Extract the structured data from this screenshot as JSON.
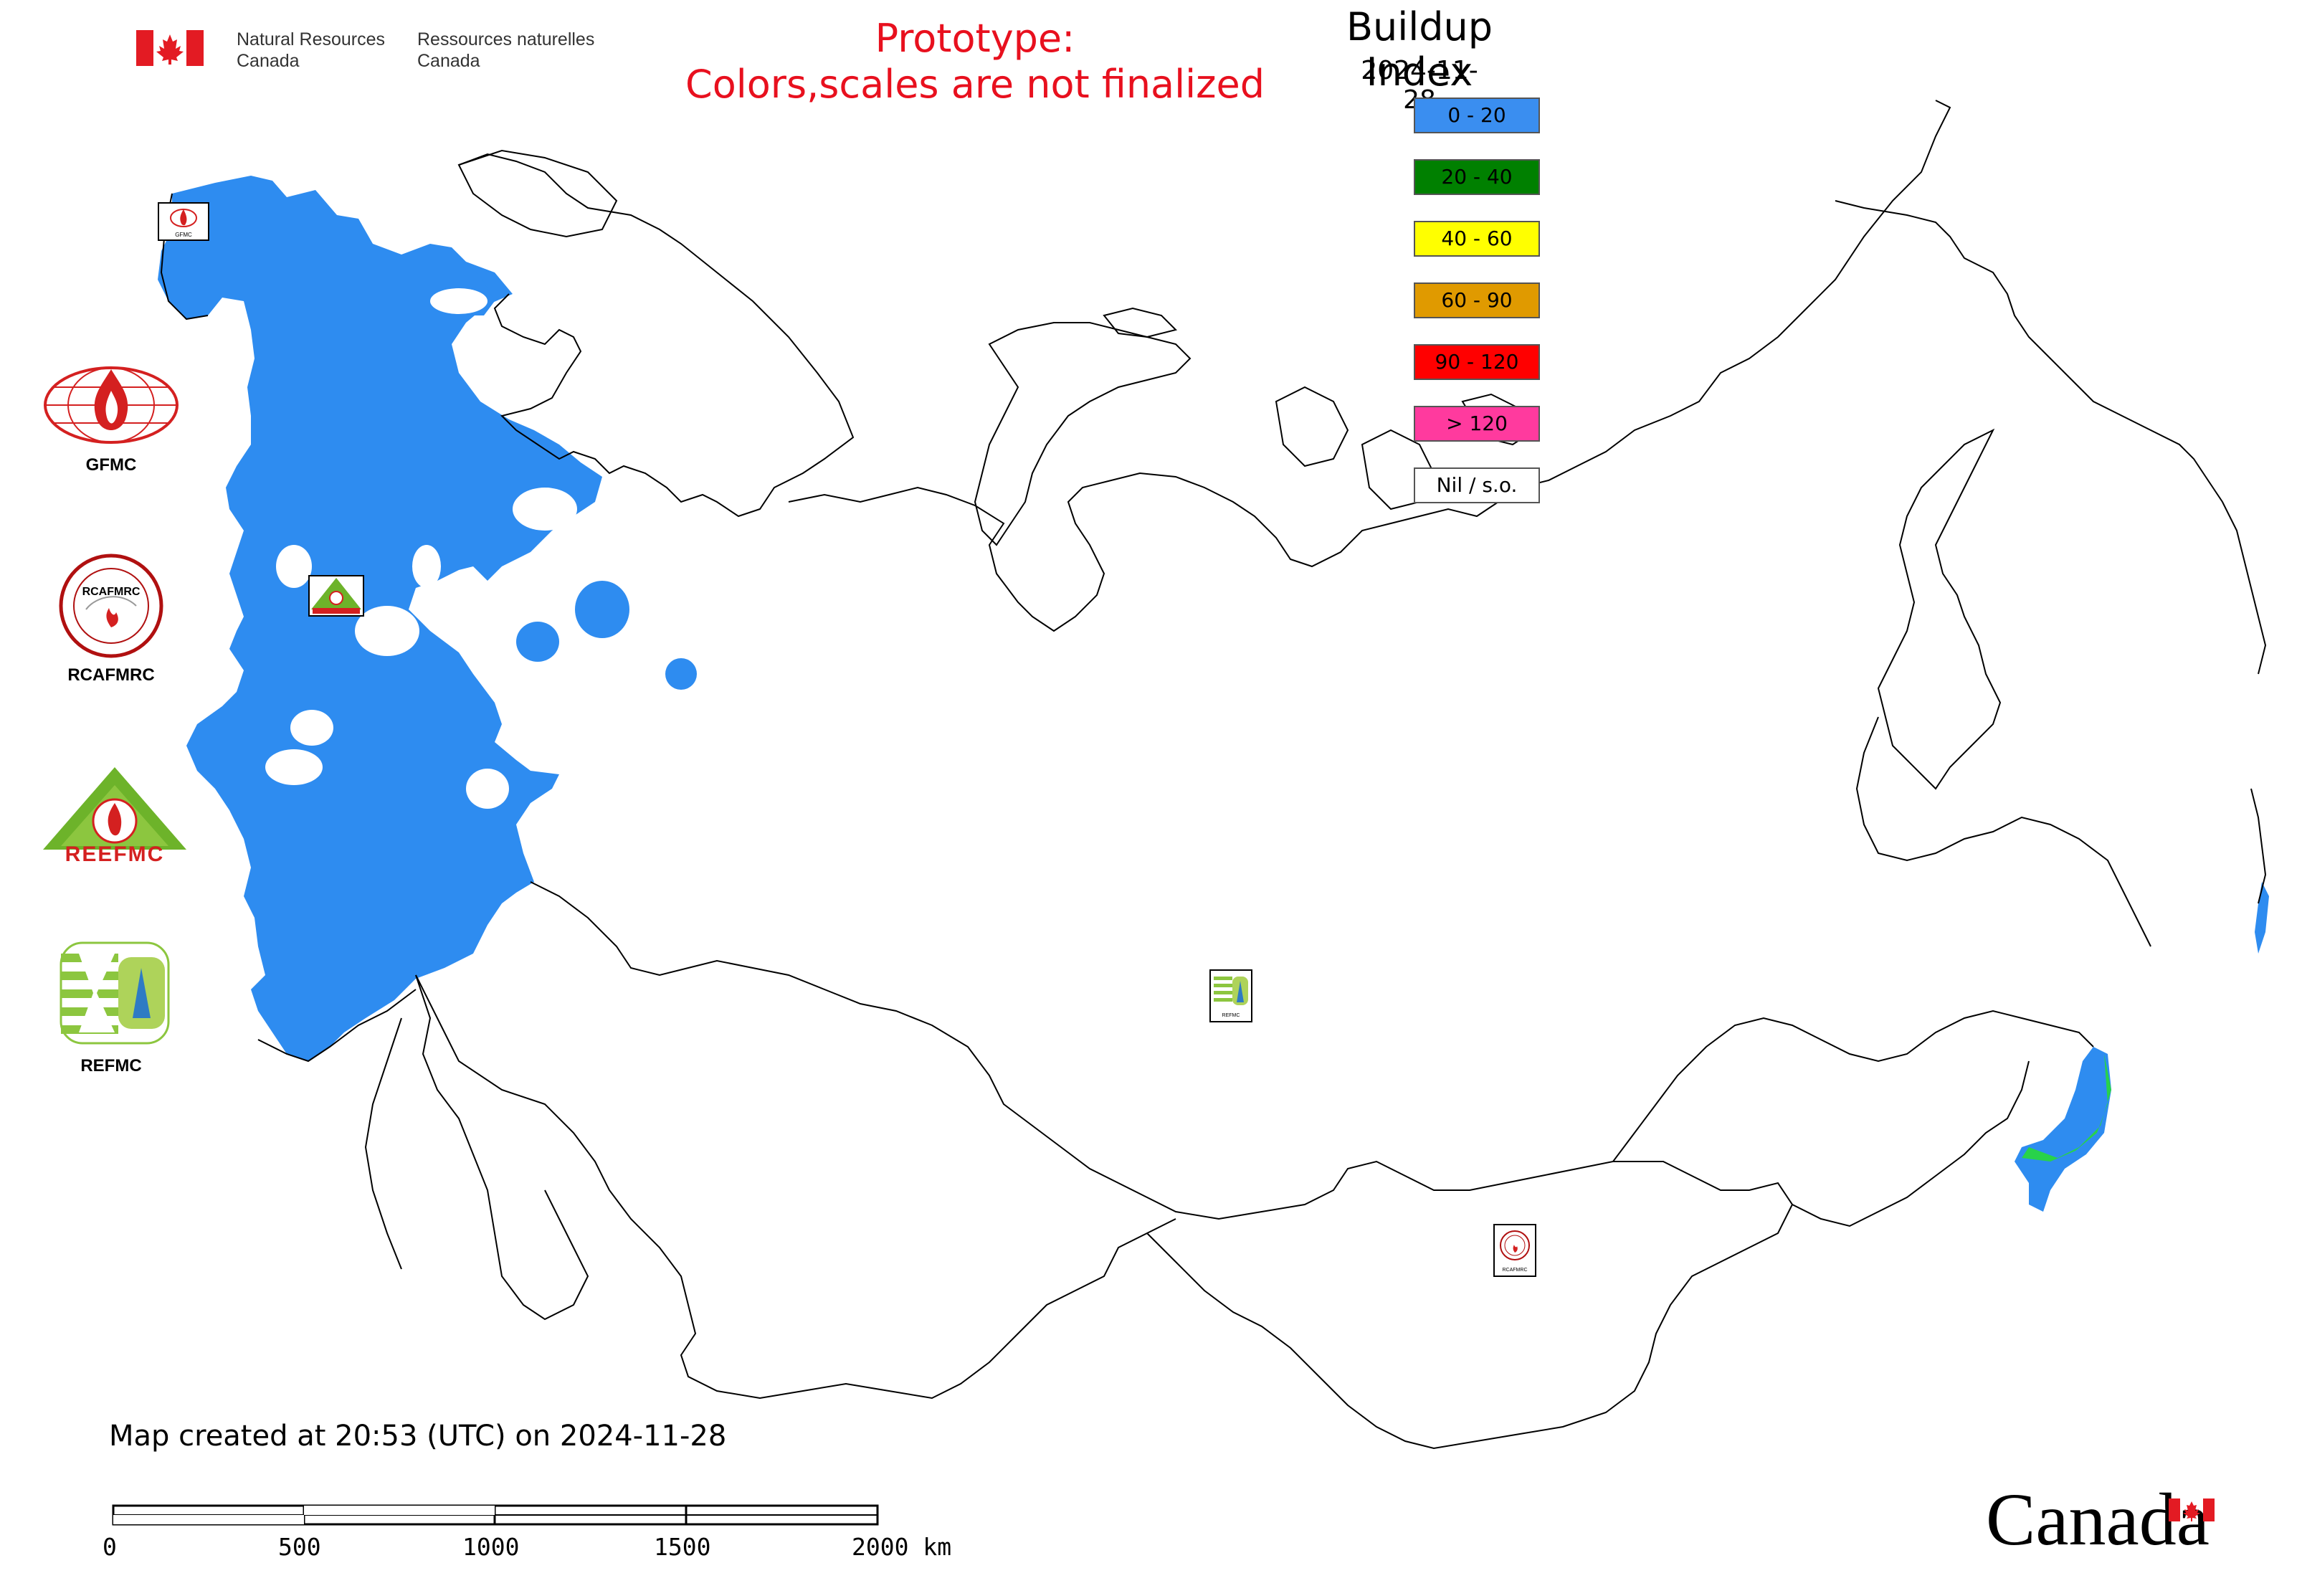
{
  "header": {
    "nrcan_en_line1": "Natural Resources",
    "nrcan_en_line2": "Canada",
    "nrcan_fr_line1": "Ressources naturelles",
    "nrcan_fr_line2": "Canada",
    "prototype_line1": "Prototype:",
    "prototype_line2": "Colors,scales are not finalized"
  },
  "map": {
    "title": "Buildup Index",
    "date": "2024-11-28",
    "created_text": "Map created at 20:53 (UTC) on 2024-11-28",
    "land_fill": "#ffffff",
    "border_color": "#000000",
    "data_fill_main": "#2e8cf0"
  },
  "legend": [
    {
      "label": "0 - 20",
      "color": "#3a8ef0"
    },
    {
      "label": "20 - 40",
      "color": "#008000"
    },
    {
      "label": "40 - 60",
      "color": "#ffff00"
    },
    {
      "label": "60 - 90",
      "color": "#e09a00"
    },
    {
      "label": "90 - 120",
      "color": "#ff0000"
    },
    {
      "label": "> 120",
      "color": "#ff3a9e"
    },
    {
      "label": "Nil / s.o.",
      "color": "#ffffff"
    }
  ],
  "side_logos": {
    "gfmc": "GFMC",
    "rcafmrc": "RCAFMRC",
    "rcafmrc_inner": "RCAFMRC",
    "reefmc": "REEFMC",
    "refmc": "REFMC"
  },
  "map_markers": {
    "gfmc_small": "GFMC",
    "refmc_small": "REFMC",
    "rcafmrc_small": "RCAFMRC"
  },
  "scale_bar": {
    "labels": [
      "0",
      "500",
      "1000",
      "1500",
      "2000 km"
    ]
  },
  "footer": {
    "wordmark": "Canada"
  },
  "icons": {
    "flag": "canada-flag-icon",
    "fire": "fire-flame-icon"
  }
}
